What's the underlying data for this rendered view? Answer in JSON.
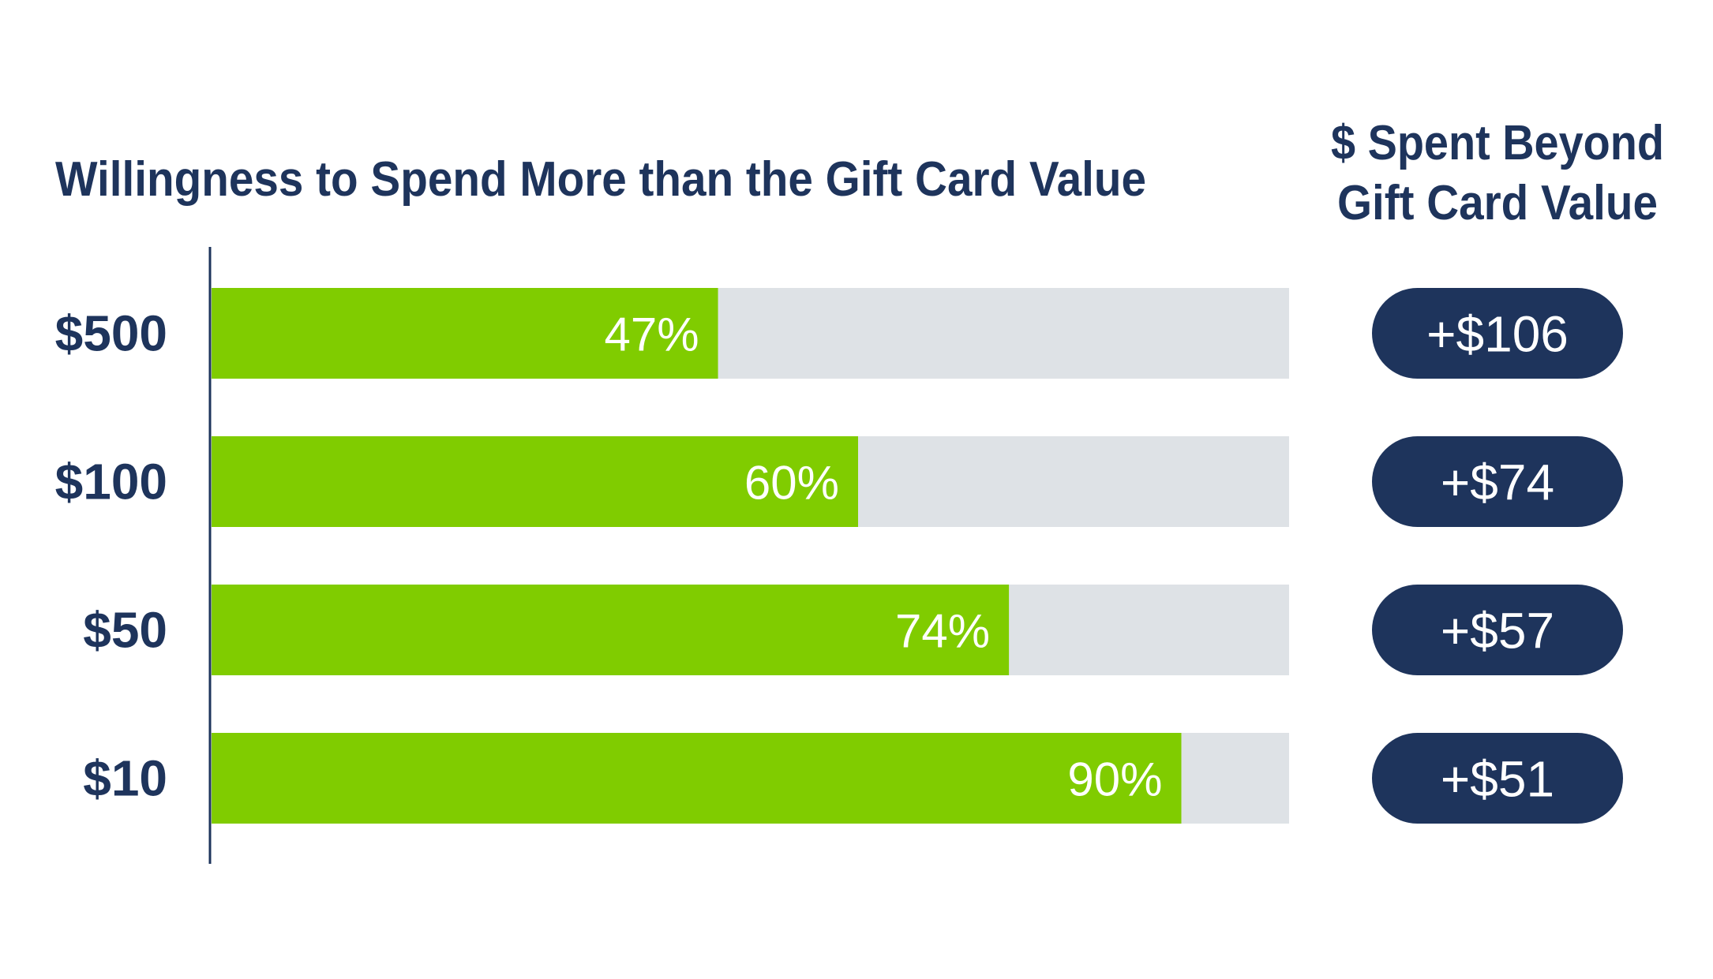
{
  "colors": {
    "navy": "#1e345c",
    "green": "#80cc00",
    "track": "#dee2e6",
    "white": "#ffffff"
  },
  "chart_data": {
    "type": "bar",
    "orientation": "horizontal",
    "title": "Willingness to Spend More than the Gift Card Value",
    "side_title": [
      "$ Spent Beyond",
      "Gift Card Value"
    ],
    "categories": [
      "$500",
      "$100",
      "$50",
      "$10"
    ],
    "values": [
      47,
      60,
      74,
      90
    ],
    "value_labels": [
      "47%",
      "60%",
      "74%",
      "90%"
    ],
    "xlim": [
      0,
      100
    ],
    "side_values": [
      106,
      74,
      57,
      51
    ],
    "side_labels": [
      "+$106",
      "+$74",
      "+$57",
      "+$51"
    ],
    "grid": false,
    "legend": "none"
  }
}
